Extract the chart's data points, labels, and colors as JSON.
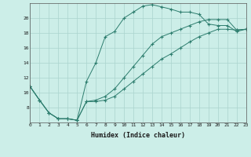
{
  "xlabel": "Humidex (Indice chaleur)",
  "background_color": "#cceee8",
  "grid_color": "#aad4ce",
  "line_color": "#2d7d6e",
  "xlim": [
    0,
    23
  ],
  "ylim": [
    6,
    22
  ],
  "yticks": [
    8,
    10,
    12,
    14,
    16,
    18,
    20
  ],
  "xticks": [
    0,
    1,
    2,
    3,
    4,
    5,
    6,
    7,
    8,
    9,
    10,
    11,
    12,
    13,
    14,
    15,
    16,
    17,
    18,
    19,
    20,
    21,
    22,
    23
  ],
  "line1_x": [
    0,
    1,
    2,
    3,
    4,
    5,
    6,
    7,
    8,
    9,
    10,
    11,
    12,
    13,
    14,
    15,
    16,
    17,
    18,
    19,
    20,
    21,
    22,
    23
  ],
  "line1_y": [
    10.8,
    9.0,
    7.3,
    6.5,
    6.5,
    6.3,
    11.5,
    14.0,
    17.5,
    18.2,
    20.0,
    20.8,
    21.6,
    21.8,
    21.5,
    21.2,
    20.8,
    20.8,
    20.5,
    19.2,
    19.0,
    19.0,
    18.2,
    18.5
  ],
  "line2_x": [
    0,
    1,
    2,
    3,
    4,
    5,
    6,
    7,
    8,
    9,
    10,
    11,
    12,
    13,
    14,
    15,
    16,
    17,
    18,
    19,
    20,
    21,
    22,
    23
  ],
  "line2_y": [
    10.8,
    9.0,
    7.3,
    6.5,
    6.5,
    6.3,
    8.8,
    9.0,
    9.5,
    10.5,
    12.0,
    13.5,
    15.0,
    16.5,
    17.5,
    18.0,
    18.5,
    19.0,
    19.5,
    19.8,
    19.8,
    19.8,
    18.4,
    18.5
  ],
  "line3_x": [
    0,
    1,
    2,
    3,
    4,
    5,
    6,
    7,
    8,
    9,
    10,
    11,
    12,
    13,
    14,
    15,
    16,
    17,
    18,
    19,
    20,
    21,
    22,
    23
  ],
  "line3_y": [
    10.8,
    9.0,
    7.3,
    6.5,
    6.5,
    6.3,
    8.8,
    8.8,
    9.0,
    9.5,
    10.5,
    11.5,
    12.5,
    13.5,
    14.5,
    15.2,
    16.0,
    16.8,
    17.5,
    18.0,
    18.5,
    18.5,
    18.4,
    18.5
  ]
}
